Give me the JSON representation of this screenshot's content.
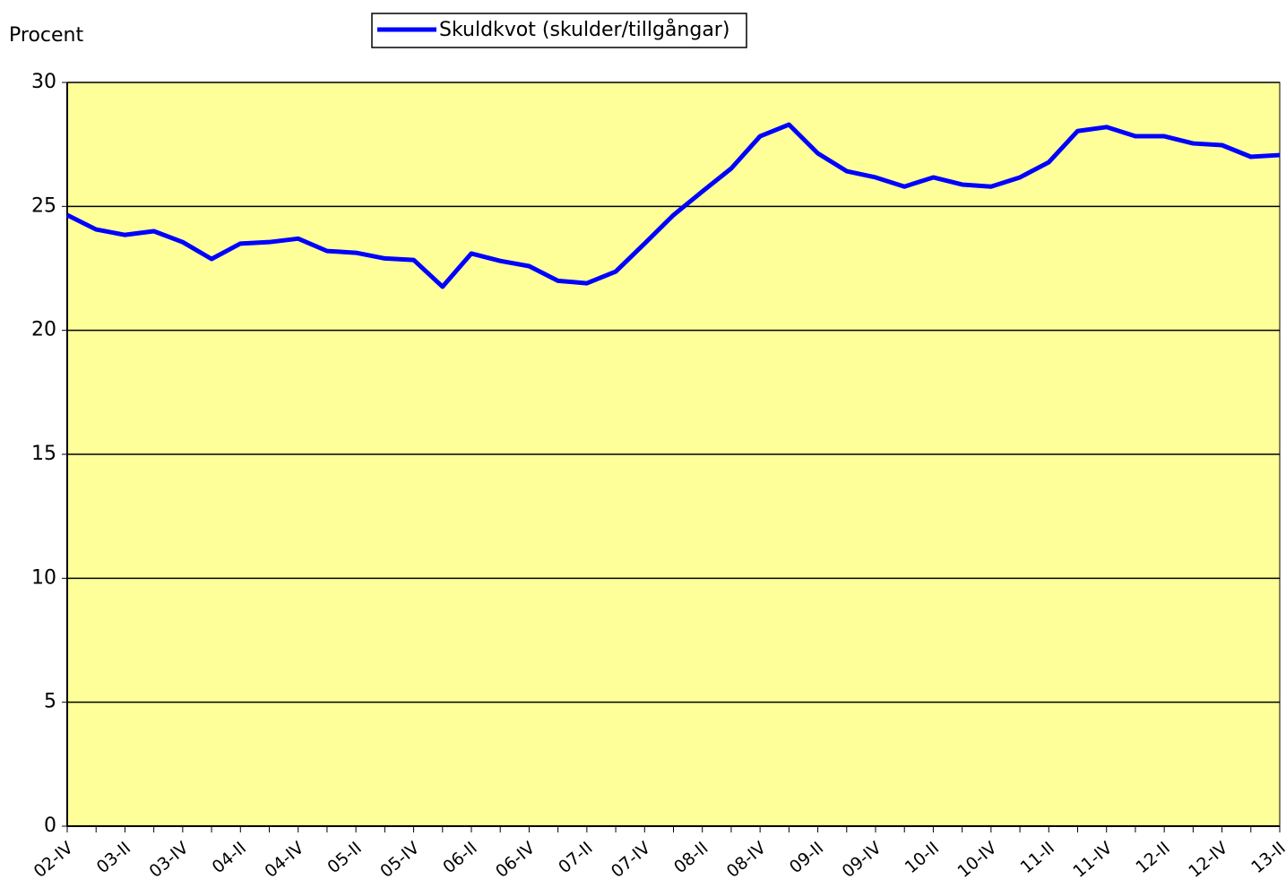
{
  "chart_data": {
    "type": "line",
    "y_axis_label": "Procent",
    "categories": [
      "02-IV",
      null,
      "03-II",
      null,
      "03-IV",
      null,
      "04-II",
      null,
      "04-IV",
      null,
      "05-II",
      null,
      "05-IV",
      null,
      "06-II",
      null,
      "06-IV",
      null,
      "07-II",
      null,
      "07-IV",
      null,
      "08-II",
      null,
      "08-IV",
      null,
      "09-II",
      null,
      "09-IV",
      null,
      "10-II",
      null,
      "10-IV",
      null,
      "11-II",
      null,
      "11-IV",
      null,
      "12-II",
      null,
      "12-IV",
      null,
      "13-II"
    ],
    "series": [
      {
        "name": "Skuldkvot (skulder/tillgångar)",
        "color": "#0000ff",
        "values": [
          24.65,
          24.07,
          23.85,
          24.0,
          23.56,
          22.88,
          23.5,
          23.56,
          23.7,
          23.2,
          23.13,
          22.9,
          22.84,
          21.76,
          23.1,
          22.8,
          22.59,
          22.0,
          21.9,
          22.37,
          23.5,
          24.65,
          25.6,
          26.53,
          27.83,
          28.3,
          27.14,
          26.42,
          26.17,
          25.8,
          26.17,
          25.88,
          25.8,
          26.17,
          26.78,
          28.04,
          28.2,
          27.83,
          27.83,
          27.54,
          27.47,
          27.0,
          27.07
        ]
      }
    ],
    "ylim": [
      0,
      30
    ],
    "yticks": [
      0,
      5,
      10,
      15,
      20,
      25,
      30
    ],
    "grid": true,
    "background": "#ffff99",
    "legend": "top"
  }
}
